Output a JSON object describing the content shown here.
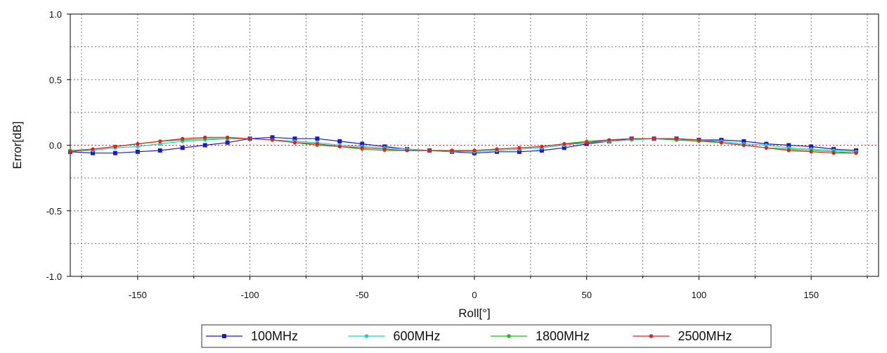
{
  "chart_data": {
    "type": "line",
    "title": "",
    "xlabel": "Roll[°]",
    "ylabel": "Error[dB]",
    "xlim": [
      -180,
      180
    ],
    "ylim": [
      -1.0,
      1.0
    ],
    "x_ticks": [
      -150,
      -100,
      -50,
      0,
      50,
      100,
      150
    ],
    "x_tick_labels": [
      "-150",
      "-100",
      "-50",
      "0",
      "50",
      "100",
      "150"
    ],
    "y_ticks": [
      1.0,
      0.5,
      0.0,
      -0.5,
      -1.0
    ],
    "y_tick_labels": [
      "1.0",
      "0.5",
      "0.0",
      "-0.5",
      "-1.0"
    ],
    "grid": true,
    "legend_position": "bottom",
    "x": [
      -180,
      -170,
      -160,
      -150,
      -140,
      -130,
      -120,
      -110,
      -100,
      -90,
      -80,
      -70,
      -60,
      -50,
      -40,
      -30,
      -20,
      -10,
      0,
      10,
      20,
      30,
      40,
      50,
      60,
      70,
      80,
      90,
      100,
      110,
      120,
      130,
      140,
      150,
      160,
      170
    ],
    "series": [
      {
        "name": "100MHz",
        "color": "#1a1acc",
        "marker": "square",
        "values": [
          -0.05,
          -0.06,
          -0.06,
          -0.05,
          -0.04,
          -0.02,
          0.0,
          0.02,
          0.05,
          0.06,
          0.05,
          0.05,
          0.03,
          0.01,
          -0.01,
          -0.03,
          -0.04,
          -0.05,
          -0.06,
          -0.05,
          -0.05,
          -0.04,
          -0.02,
          0.01,
          0.03,
          0.05,
          0.05,
          0.05,
          0.04,
          0.04,
          0.03,
          0.01,
          0.0,
          -0.01,
          -0.03,
          -0.04
        ]
      },
      {
        "name": "600MHz",
        "color": "#22d0d0",
        "marker": "dot",
        "values": [
          -0.04,
          -0.04,
          -0.02,
          -0.01,
          0.01,
          0.03,
          0.04,
          0.05,
          0.05,
          0.04,
          0.03,
          0.02,
          0.0,
          -0.01,
          -0.02,
          -0.03,
          -0.04,
          -0.04,
          -0.05,
          -0.04,
          -0.03,
          -0.02,
          0.0,
          0.02,
          0.03,
          0.04,
          0.05,
          0.04,
          0.04,
          0.03,
          0.01,
          0.0,
          -0.02,
          -0.03,
          -0.04,
          -0.05
        ]
      },
      {
        "name": "1800MHz",
        "color": "#22bb22",
        "marker": "dot",
        "values": [
          -0.04,
          -0.03,
          -0.01,
          0.01,
          0.03,
          0.04,
          0.05,
          0.05,
          0.05,
          0.04,
          0.02,
          0.0,
          -0.01,
          -0.03,
          -0.04,
          -0.04,
          -0.04,
          -0.05,
          -0.04,
          -0.03,
          -0.02,
          -0.01,
          0.01,
          0.03,
          0.04,
          0.05,
          0.05,
          0.04,
          0.03,
          0.02,
          0.0,
          -0.02,
          -0.03,
          -0.04,
          -0.05,
          -0.06
        ]
      },
      {
        "name": "2500MHz",
        "color": "#dd2222",
        "marker": "dot",
        "values": [
          -0.05,
          -0.03,
          -0.01,
          0.01,
          0.03,
          0.05,
          0.06,
          0.06,
          0.05,
          0.04,
          0.02,
          0.01,
          -0.01,
          -0.02,
          -0.03,
          -0.04,
          -0.04,
          -0.04,
          -0.04,
          -0.03,
          -0.02,
          -0.01,
          0.01,
          0.02,
          0.04,
          0.05,
          0.05,
          0.05,
          0.04,
          0.02,
          0.0,
          -0.02,
          -0.04,
          -0.05,
          -0.06,
          -0.06
        ]
      }
    ]
  }
}
